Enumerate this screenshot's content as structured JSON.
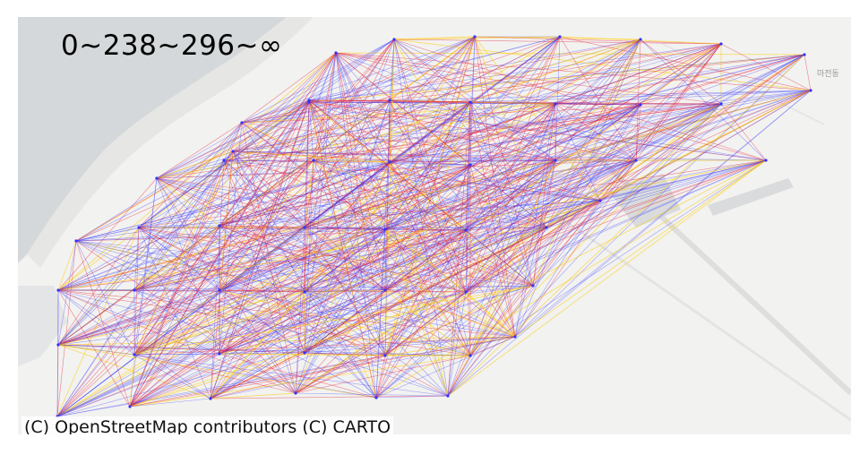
{
  "map": {
    "title": "0~238~296~∞",
    "attribution": "(C) OpenStreetMap contributors (C) CARTO",
    "place_label": "마전동",
    "edge_colors": {
      "low": "#3333ff",
      "mid": "#e8203a",
      "high": "#ffcc00"
    },
    "water_color": "#d4d8da",
    "land_color": "#f2f2f0",
    "road_color": "#e2e2e0"
  }
}
